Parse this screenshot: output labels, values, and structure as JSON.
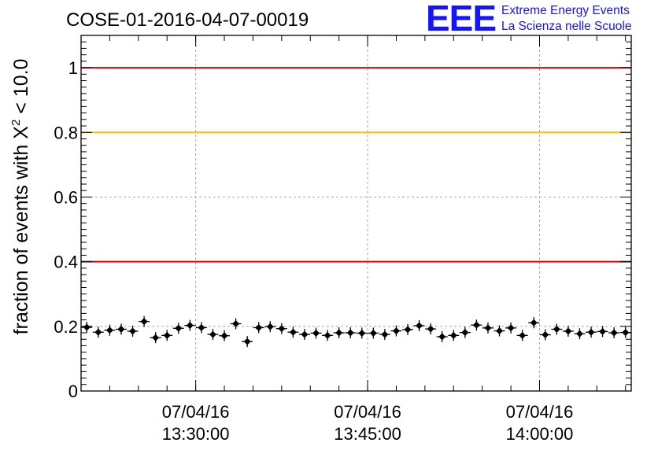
{
  "title": "COSE-01-2016-04-07-00019",
  "logo": {
    "letters": "EEE",
    "line1": "Extreme Energy Events",
    "line2": "La Scienza nelle Scuole",
    "color": "#1414ff"
  },
  "chart_data": {
    "type": "scatter",
    "title": "COSE-01-2016-04-07-00019",
    "ylabel": {
      "prefix": "fraction of events with ",
      "symbol": "X",
      "superscript": "2",
      "suffix": " < 10.0"
    },
    "xlabel": "",
    "ylim": [
      0,
      1.1
    ],
    "xlim": [
      "07/04/16 13:20:00",
      "07/04/16 14:08:00"
    ],
    "y_ticks": [
      "0",
      "0.2",
      "0.4",
      "0.6",
      "0.8",
      "1"
    ],
    "x_ticks": [
      {
        "date": "07/04/16",
        "time": "13:30:00"
      },
      {
        "date": "07/04/16",
        "time": "13:45:00"
      },
      {
        "date": "07/04/16",
        "time": "14:00:00"
      }
    ],
    "grid": true,
    "reference_lines": [
      {
        "y": 1.0,
        "color": "#e00000"
      },
      {
        "y": 0.8,
        "color": "#ffbf00"
      },
      {
        "y": 0.4,
        "color": "#e00000"
      }
    ],
    "series": [
      {
        "marker": "diamond",
        "color": "#000000",
        "x": [
          "13:20:30",
          "13:21:30",
          "13:22:30",
          "13:23:30",
          "13:24:30",
          "13:25:30",
          "13:26:30",
          "13:27:30",
          "13:28:30",
          "13:29:30",
          "13:30:30",
          "13:31:30",
          "13:32:30",
          "13:33:30",
          "13:34:30",
          "13:35:30",
          "13:36:30",
          "13:37:30",
          "13:38:30",
          "13:39:30",
          "13:40:30",
          "13:41:30",
          "13:42:30",
          "13:43:30",
          "13:44:30",
          "13:45:30",
          "13:46:30",
          "13:47:30",
          "13:48:30",
          "13:49:30",
          "13:50:30",
          "13:51:30",
          "13:52:30",
          "13:53:30",
          "13:54:30",
          "13:55:30",
          "13:56:30",
          "13:57:30",
          "13:58:30",
          "13:59:30",
          "14:00:30",
          "14:01:30",
          "14:02:30",
          "14:03:30",
          "14:04:30",
          "14:05:30",
          "14:06:30",
          "14:07:30"
        ],
        "y": [
          0.197,
          0.182,
          0.188,
          0.191,
          0.185,
          0.215,
          0.165,
          0.172,
          0.194,
          0.203,
          0.196,
          0.175,
          0.171,
          0.208,
          0.153,
          0.196,
          0.199,
          0.193,
          0.182,
          0.175,
          0.179,
          0.172,
          0.18,
          0.18,
          0.179,
          0.179,
          0.175,
          0.186,
          0.19,
          0.202,
          0.192,
          0.168,
          0.172,
          0.181,
          0.204,
          0.195,
          0.186,
          0.195,
          0.172,
          0.211,
          0.174,
          0.191,
          0.185,
          0.177,
          0.182,
          0.184,
          0.18,
          0.181
        ]
      }
    ]
  }
}
